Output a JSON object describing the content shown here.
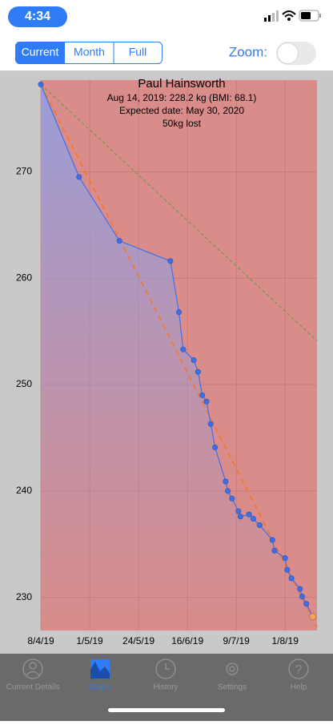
{
  "status_bar": {
    "time": "4:34"
  },
  "segments": [
    "Current",
    "Month",
    "Full"
  ],
  "zoom_label": "Zoom:",
  "chart_data": {
    "type": "line",
    "title": "Paul Hainsworth",
    "annotations": [
      "Aug 14, 2019: 228.2 kg (BMI: 68.1)",
      "Expected date: May 30, 2020",
      "50kg lost"
    ],
    "x": [
      "2019-04-08",
      "2019-04-26",
      "2019-05-15",
      "2019-06-08",
      "2019-06-12",
      "2019-06-14",
      "2019-06-19",
      "2019-06-21",
      "2019-06-23",
      "2019-06-25",
      "2019-06-27",
      "2019-06-29",
      "2019-07-04",
      "2019-07-05",
      "2019-07-07",
      "2019-07-10",
      "2019-07-11",
      "2019-07-15",
      "2019-07-17",
      "2019-07-20",
      "2019-07-26",
      "2019-07-27",
      "2019-08-01",
      "2019-08-02",
      "2019-08-04",
      "2019-08-08",
      "2019-08-09",
      "2019-08-11",
      "2019-08-14"
    ],
    "series": [
      {
        "color": "#3f6fe6",
        "values": [
          278.2,
          269.5,
          263.5,
          261.6,
          256.8,
          253.3,
          252.3,
          251.2,
          249.0,
          248.4,
          246.3,
          244.1,
          240.9,
          240.0,
          239.3,
          238.1,
          237.6,
          237.8,
          237.4,
          236.8,
          235.4,
          234.4,
          233.7,
          232.6,
          231.8,
          230.8,
          230.1,
          229.4,
          228.2
        ]
      }
    ],
    "last_marker_color": "#f2a65a",
    "trend_lines": [
      {
        "color": "#f07a3a",
        "x": [
          "2019-04-08",
          "2019-08-16"
        ],
        "values": [
          278.2,
          227.2
        ]
      },
      {
        "color": "#6f9a4a",
        "x": [
          "2019-04-08",
          "2019-08-16"
        ],
        "values": [
          278.2,
          254.1
        ]
      }
    ],
    "xlim": [
      "2019-04-08",
      "2019-08-16"
    ],
    "ylim": [
      226.9,
      278.6
    ],
    "xticks": [
      {
        "value": "2019-04-08",
        "label": "8/4/19"
      },
      {
        "value": "2019-05-01",
        "label": "1/5/19"
      },
      {
        "value": "2019-05-24",
        "label": "24/5/19"
      },
      {
        "value": "2019-06-16",
        "label": "16/6/19"
      },
      {
        "value": "2019-07-09",
        "label": "9/7/19"
      },
      {
        "value": "2019-08-01",
        "label": "1/8/19"
      }
    ],
    "yticks": [
      230,
      240,
      250,
      260,
      270
    ],
    "grid": true,
    "background": "#d98c8a"
  },
  "tab_bar": [
    "Current Details",
    "Graph",
    "History",
    "Settings",
    "Help"
  ]
}
